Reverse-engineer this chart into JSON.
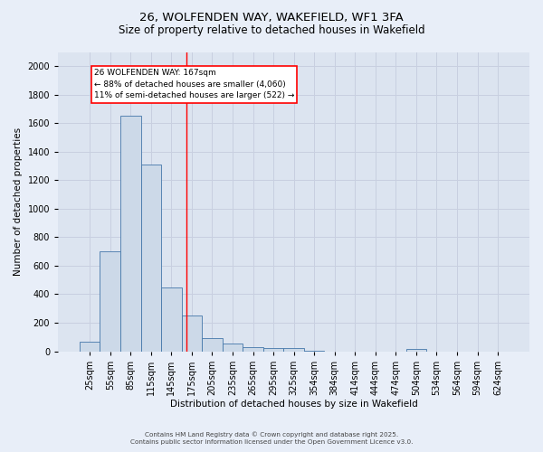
{
  "title_line1": "26, WOLFENDEN WAY, WAKEFIELD, WF1 3FA",
  "title_line2": "Size of property relative to detached houses in Wakefield",
  "xlabel": "Distribution of detached houses by size in Wakefield",
  "ylabel": "Number of detached properties",
  "categories": [
    "25sqm",
    "55sqm",
    "85sqm",
    "115sqm",
    "145sqm",
    "175sqm",
    "205sqm",
    "235sqm",
    "265sqm",
    "295sqm",
    "325sqm",
    "354sqm",
    "384sqm",
    "414sqm",
    "444sqm",
    "474sqm",
    "504sqm",
    "534sqm",
    "564sqm",
    "594sqm",
    "624sqm"
  ],
  "values": [
    65,
    700,
    1650,
    1310,
    450,
    250,
    95,
    55,
    30,
    25,
    20,
    5,
    0,
    0,
    0,
    0,
    15,
    0,
    0,
    0,
    0
  ],
  "bar_color": "#ccd9e8",
  "bar_edge_color": "#4477aa",
  "grid_color": "#c8cfe0",
  "background_color": "#dce4f0",
  "fig_background_color": "#e8eef8",
  "annotation_text_line1": "26 WOLFENDEN WAY: 167sqm",
  "annotation_text_line2": "← 88% of detached houses are smaller (4,060)",
  "annotation_text_line3": "11% of semi-detached houses are larger (522) →",
  "ylim": [
    0,
    2100
  ],
  "yticks": [
    0,
    200,
    400,
    600,
    800,
    1000,
    1200,
    1400,
    1600,
    1800,
    2000
  ],
  "footer_line1": "Contains HM Land Registry data © Crown copyright and database right 2025.",
  "footer_line2": "Contains public sector information licensed under the Open Government Licence v3.0."
}
